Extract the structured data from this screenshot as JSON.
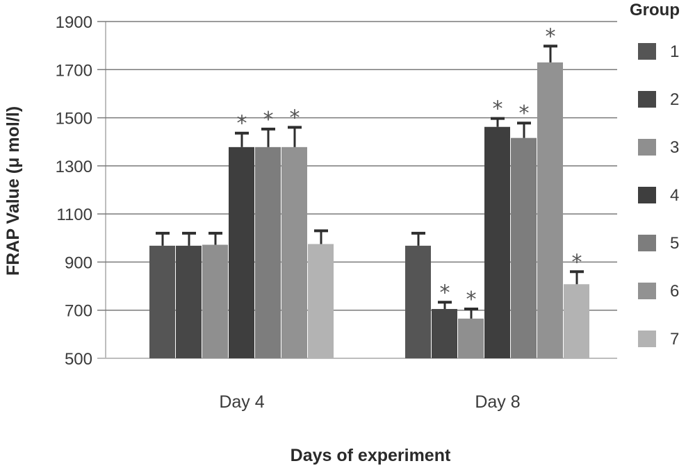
{
  "chart_data": {
    "type": "bar",
    "title": "",
    "xlabel": "Days of experiment",
    "ylabel": "FRAP Value (μ mol/l)",
    "ylim": [
      500,
      1900
    ],
    "yticks": [
      500,
      700,
      900,
      1100,
      1300,
      1500,
      1700,
      1900
    ],
    "grid": true,
    "legend": {
      "title": "Group",
      "placement": "right"
    },
    "categories": [
      "Day 4",
      "Day 8"
    ],
    "series": [
      {
        "name": "1",
        "color": "#555555",
        "values": [
          968,
          968
        ],
        "errors": [
          52,
          52
        ],
        "significant": [
          false,
          false
        ]
      },
      {
        "name": "2",
        "color": "#474747",
        "values": [
          968,
          705
        ],
        "errors": [
          52,
          28
        ],
        "significant": [
          false,
          true
        ]
      },
      {
        "name": "3",
        "color": "#8f8f8f",
        "values": [
          972,
          665
        ],
        "errors": [
          48,
          40
        ],
        "significant": [
          false,
          true
        ]
      },
      {
        "name": "4",
        "color": "#3e3e3e",
        "values": [
          1378,
          1462
        ],
        "errors": [
          58,
          35
        ],
        "significant": [
          true,
          true
        ]
      },
      {
        "name": "5",
        "color": "#7d7d7d",
        "values": [
          1378,
          1416
        ],
        "errors": [
          75,
          62
        ],
        "significant": [
          true,
          true
        ]
      },
      {
        "name": "6",
        "color": "#929292",
        "values": [
          1378,
          1730
        ],
        "errors": [
          82,
          68
        ],
        "significant": [
          true,
          true
        ]
      },
      {
        "name": "7",
        "color": "#b3b3b3",
        "values": [
          975,
          808
        ],
        "errors": [
          55,
          52
        ],
        "significant": [
          false,
          true
        ]
      }
    ],
    "significance_marker": "*"
  }
}
